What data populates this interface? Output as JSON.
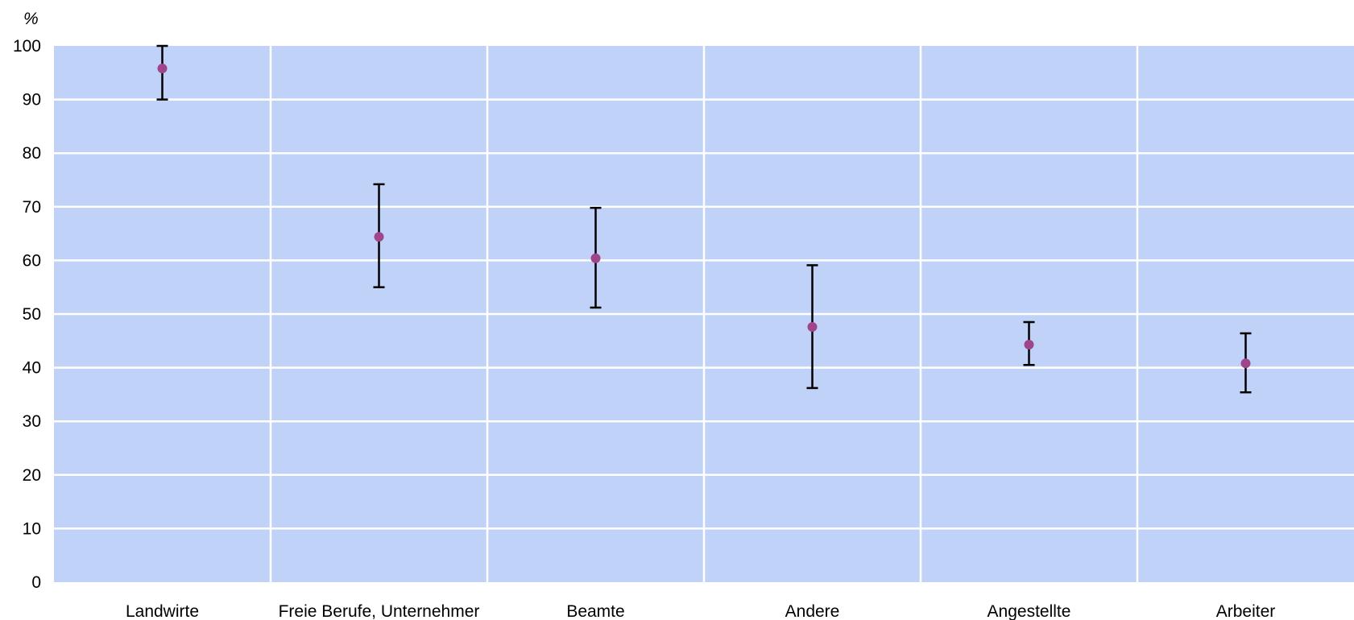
{
  "chart_data": {
    "type": "scatter",
    "title": "",
    "xlabel": "",
    "ylabel": "%",
    "ylim": [
      0,
      100
    ],
    "yticks": [
      0,
      10,
      20,
      30,
      40,
      50,
      60,
      70,
      80,
      90,
      100
    ],
    "categories": [
      "Landwirte",
      "Freie Berufe, Unternehmer",
      "Beamte",
      "Andere",
      "Angestellte",
      "Arbeiter"
    ],
    "series": [
      {
        "values": [
          95.8,
          64.4,
          60.4,
          47.6,
          44.3,
          40.8
        ],
        "lower": [
          90.0,
          55.0,
          51.2,
          36.2,
          40.5,
          35.4
        ],
        "upper": [
          100.0,
          74.2,
          69.8,
          59.1,
          48.5,
          46.4
        ]
      }
    ],
    "grid": true,
    "legend": "none",
    "colors": {
      "plot_background": "#c0d2f8",
      "gridline": "#ffffff",
      "marker": "#a0458c",
      "error_bar": "#000000"
    }
  }
}
